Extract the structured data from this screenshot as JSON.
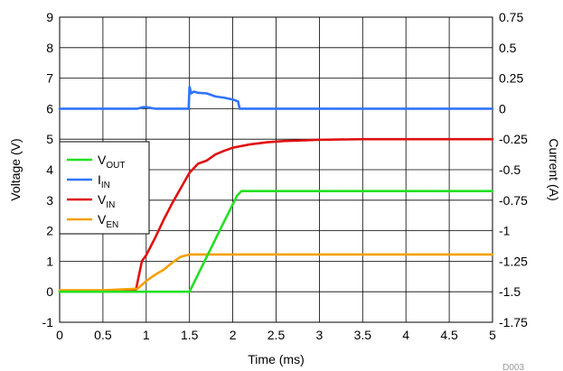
{
  "chart_data": {
    "type": "line",
    "xlabel": "Time (ms)",
    "ylabel": "Voltage (V)",
    "y2label": "Current (A)",
    "xlim": [
      0,
      5
    ],
    "ylim": [
      -1,
      9
    ],
    "y2lim": [
      -1.75,
      0.75
    ],
    "grid": true,
    "legend_position": "left",
    "figure_id": "D003",
    "x_ticks": [
      "0",
      "0.5",
      "1",
      "1.5",
      "2",
      "2.5",
      "3",
      "3.5",
      "4",
      "4.5",
      "5"
    ],
    "y_ticks": [
      "-1",
      "0",
      "1",
      "2",
      "3",
      "4",
      "5",
      "6",
      "7",
      "8",
      "9"
    ],
    "y2_ticks": [
      "-1.75",
      "-1.5",
      "-1.25",
      "-1",
      "-0.75",
      "-0.5",
      "-0.25",
      "0",
      "0.25",
      "0.5",
      "0.75"
    ],
    "series": [
      {
        "name": "VOUT",
        "base": "V",
        "sub": "OUT",
        "color": "#22e022",
        "axis": "left",
        "x": [
          0,
          0.5,
          1.0,
          1.45,
          1.5,
          1.7,
          1.9,
          2.05,
          2.1,
          2.5,
          3.0,
          4.0,
          5.0
        ],
        "y": [
          0,
          0,
          0,
          0,
          0,
          1.15,
          2.3,
          3.15,
          3.3,
          3.3,
          3.3,
          3.3,
          3.3
        ]
      },
      {
        "name": "IIN",
        "base": "I",
        "sub": "IN",
        "color": "#2f74ff",
        "axis": "right",
        "x": [
          0,
          0.5,
          0.9,
          0.96,
          1.0,
          1.1,
          1.49,
          1.5,
          1.52,
          1.55,
          1.6,
          1.7,
          1.8,
          1.9,
          2.0,
          2.06,
          2.08,
          2.2,
          3.0,
          4.0,
          5.0
        ],
        "y": [
          0.0,
          0.0,
          0.0,
          0.0125,
          0.0125,
          0.0,
          0.0,
          0.18,
          0.125,
          0.14,
          0.13,
          0.125,
          0.1,
          0.09,
          0.075,
          0.06,
          0.0,
          0.0,
          0.0,
          0.0,
          0.0
        ]
      },
      {
        "name": "VIN",
        "base": "V",
        "sub": "IN",
        "color": "#e01010",
        "axis": "left",
        "x": [
          0,
          0.5,
          0.88,
          0.95,
          1.0,
          1.1,
          1.2,
          1.3,
          1.4,
          1.5,
          1.6,
          1.7,
          1.8,
          1.9,
          2.0,
          2.2,
          2.4,
          2.6,
          2.8,
          3.0,
          3.5,
          4.0,
          5.0
        ],
        "y": [
          0,
          0,
          0.05,
          1.0,
          1.2,
          1.75,
          2.35,
          2.9,
          3.4,
          3.9,
          4.2,
          4.3,
          4.5,
          4.62,
          4.72,
          4.83,
          4.9,
          4.94,
          4.96,
          4.98,
          5.0,
          5.0,
          5.0
        ]
      },
      {
        "name": "VEN",
        "base": "V",
        "sub": "EN",
        "color": "#f4a000",
        "axis": "left",
        "x": [
          0,
          0.5,
          0.9,
          1.0,
          1.1,
          1.2,
          1.3,
          1.4,
          1.5,
          1.6,
          2.0,
          3.0,
          4.0,
          5.0
        ],
        "y": [
          0.05,
          0.05,
          0.1,
          0.35,
          0.55,
          0.72,
          0.95,
          1.15,
          1.22,
          1.22,
          1.22,
          1.22,
          1.22,
          1.22
        ]
      }
    ]
  }
}
